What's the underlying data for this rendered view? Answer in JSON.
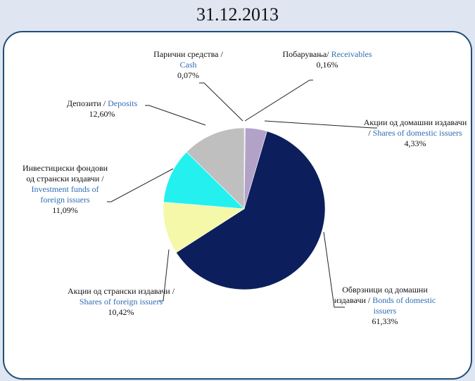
{
  "chart_data": {
    "type": "pie",
    "title": "31.12.2013",
    "categories_mk": [
      "Парични средства /",
      "Побарувања/",
      "Акции од домашни издавачи /",
      "Обврзници од домашни издавачи /",
      "Акции од странски издавачи /",
      "Инвестициски фондови од странски издавчи /",
      "Депозити /"
    ],
    "categories": [
      "Cash",
      "Receivables",
      "Shares of domestic issuers",
      "Bonds of domestic issuers",
      "Shares of foreign issuers",
      "Investment funds of foreign issuers",
      "Deposits"
    ],
    "values": [
      0.07,
      0.16,
      4.33,
      61.33,
      10.42,
      11.09,
      12.6
    ],
    "value_labels": [
      "0,07%",
      "0,16%",
      "4,33%",
      "61,33%",
      "10,42%",
      "11,09%",
      "12,60%"
    ],
    "colors": [
      "#4f81bd",
      "#9dc3e6",
      "#b3a2c7",
      "#0c1f5c",
      "#f4f8a8",
      "#24f0f0",
      "#bfbfbf"
    ]
  }
}
